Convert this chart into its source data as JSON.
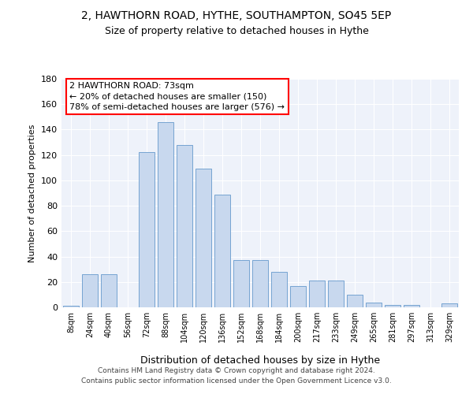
{
  "title": "2, HAWTHORN ROAD, HYTHE, SOUTHAMPTON, SO45 5EP",
  "subtitle": "Size of property relative to detached houses in Hythe",
  "xlabel": "Distribution of detached houses by size in Hythe",
  "ylabel": "Number of detached properties",
  "bar_color": "#c8d8ee",
  "bar_edge_color": "#6699cc",
  "background_color": "#eef2fa",
  "grid_color": "#ffffff",
  "categories": [
    "8sqm",
    "24sqm",
    "40sqm",
    "56sqm",
    "72sqm",
    "88sqm",
    "104sqm",
    "120sqm",
    "136sqm",
    "152sqm",
    "168sqm",
    "184sqm",
    "200sqm",
    "217sqm",
    "233sqm",
    "249sqm",
    "265sqm",
    "281sqm",
    "297sqm",
    "313sqm",
    "329sqm"
  ],
  "values": [
    1,
    26,
    26,
    0,
    122,
    146,
    128,
    109,
    89,
    37,
    37,
    28,
    17,
    21,
    21,
    10,
    4,
    2,
    2,
    0,
    3
  ],
  "ylim": [
    0,
    180
  ],
  "yticks": [
    0,
    20,
    40,
    60,
    80,
    100,
    120,
    140,
    160,
    180
  ],
  "property_label": "2 HAWTHORN ROAD: 73sqm",
  "annotation_line1": "← 20% of detached houses are smaller (150)",
  "annotation_line2": "78% of semi-detached houses are larger (576) →",
  "footer_line1": "Contains HM Land Registry data © Crown copyright and database right 2024.",
  "footer_line2": "Contains public sector information licensed under the Open Government Licence v3.0."
}
